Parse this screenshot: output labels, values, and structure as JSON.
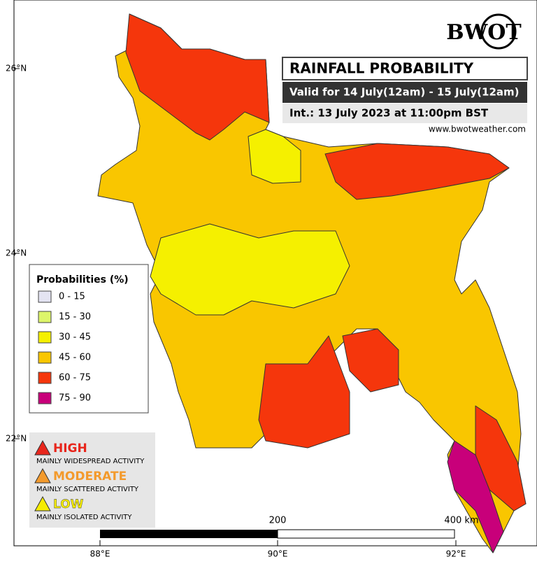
{
  "header": {
    "logo": "BWOT",
    "title": "RAINFALL PROBABILITY",
    "valid": "Valid for 14 July(12am) - 15 July(12am)",
    "issued": "Int.: 13 July 2023 at 11:00pm BST",
    "website": "www.bwotweather.com"
  },
  "map": {
    "lat_labels": [
      "26°N",
      "24°N",
      "22°N"
    ],
    "lon_labels": [
      "88°E",
      "90°E",
      "92°E"
    ],
    "scale_labels": [
      "200",
      "400 km"
    ]
  },
  "legend": {
    "title": "Probabilities (%)",
    "items": [
      {
        "label": "0 - 15",
        "color": "#e4e4f2"
      },
      {
        "label": "15 - 30",
        "color": "#ddf56a"
      },
      {
        "label": "30 - 45",
        "color": "#f5f000"
      },
      {
        "label": "45 - 60",
        "color": "#f9c600"
      },
      {
        "label": "60 - 75",
        "color": "#f5360c"
      },
      {
        "label": "75 - 90",
        "color": "#c8007a"
      }
    ]
  },
  "risk_legend": [
    {
      "level": "HIGH",
      "description": "MAINLY WIDESPREAD ACTIVITY",
      "color": "#e8261c"
    },
    {
      "level": "MODERATE",
      "description": "MAINLY SCATTERED ACTIVITY",
      "color": "#f39a2c"
    },
    {
      "level": "LOW",
      "description": "MAINLY ISOLATED ACTIVITY",
      "color": "#f5ec00"
    }
  ]
}
